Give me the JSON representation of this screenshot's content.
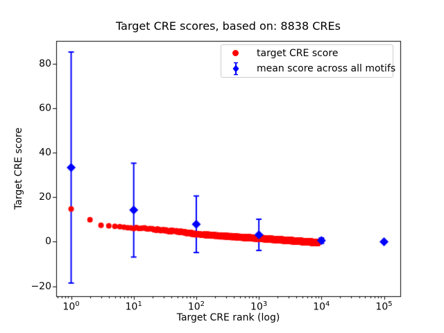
{
  "chart_data": {
    "type": "scatter",
    "title": "Target CRE scores, based on: 8838 CREs",
    "xlabel": "Target CRE rank (log)",
    "ylabel": "Target CRE score",
    "x_scale": "log",
    "xlim": [
      0.577,
      182000
    ],
    "ylim": [
      -24.5,
      90.2
    ],
    "x_ticks": {
      "base": 10,
      "exponents": [
        0,
        1,
        2,
        3,
        4,
        5
      ]
    },
    "y_ticks": {
      "values": [
        80,
        60,
        40,
        20,
        0,
        -20
      ],
      "labels": [
        "80",
        "60",
        "40",
        "20",
        "0",
        "−20"
      ]
    },
    "grid": false,
    "legend_position": "upper right",
    "n_cres": 8838,
    "colors": {
      "target": "#ff0000",
      "mean": "#0000ff",
      "text": "#000000",
      "frame": "#000000",
      "legend_border": "#cccccc",
      "background": "#ffffff"
    },
    "series": [
      {
        "name": "target CRE score",
        "kind": "dense-scatter",
        "marker": "circle",
        "color": "#ff0000",
        "n_points": 8838,
        "rank_range": [
          1,
          8838
        ],
        "trend_log10rank_vs_score": [
          [
            0,
            14.7
          ],
          [
            0.301,
            9.9
          ],
          [
            0.477,
            7.4
          ],
          [
            0.699,
            6.9
          ],
          [
            1.0,
            6.3
          ],
          [
            1.301,
            5.6
          ],
          [
            1.699,
            4.6
          ],
          [
            2.0,
            3.4
          ],
          [
            2.5,
            2.4
          ],
          [
            3.0,
            1.5
          ],
          [
            3.5,
            0.5
          ],
          [
            3.946,
            -0.4
          ]
        ],
        "jitter": 0.4
      },
      {
        "name": "mean score across all motifs",
        "kind": "errorbar",
        "marker": "diamond",
        "color": "#0000ff",
        "x": [
          1,
          10,
          100,
          1000,
          10000,
          100000
        ],
        "y": [
          33.3,
          14.2,
          7.8,
          3.1,
          0.5,
          0.0
        ],
        "yerr": [
          51.9,
          21.1,
          12.7,
          7.0,
          1.2,
          0.3
        ]
      }
    ]
  }
}
